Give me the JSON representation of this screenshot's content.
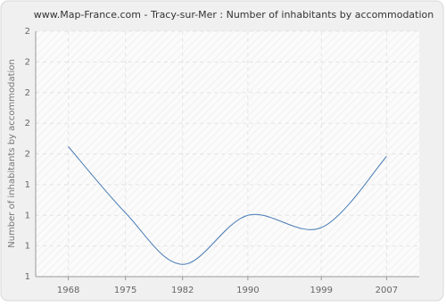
{
  "chart_data": {
    "type": "line",
    "title": "www.Map-France.com - Tracy-sur-Mer : Number of inhabitants by accommodation",
    "y_label": "Number of inhabitants by accommodation",
    "x": [
      1968,
      1975,
      1982,
      1990,
      1999,
      2007
    ],
    "series": [
      {
        "name": "Number of inhabitants by accommodation",
        "color": "#4a7db5",
        "values": [
          1.53,
          1.26,
          1.05,
          1.25,
          1.2,
          1.49
        ]
      }
    ],
    "xlim": [
      1964,
      2011
    ],
    "xticks": [
      1968,
      1975,
      1982,
      1990,
      1999,
      2007
    ],
    "ylim": [
      1,
      2
    ],
    "yticks": [
      {
        "value": 1,
        "label": "1"
      },
      {
        "value": 1.125,
        "label": "1"
      },
      {
        "value": 1.25,
        "label": "1"
      },
      {
        "value": 1.375,
        "label": "1"
      },
      {
        "value": 1.5,
        "label": "2"
      },
      {
        "value": 1.625,
        "label": "2"
      },
      {
        "value": 1.75,
        "label": "2"
      },
      {
        "value": 1.875,
        "label": "2"
      },
      {
        "value": 2,
        "label": "2"
      }
    ],
    "grid": true,
    "smooth": true
  }
}
